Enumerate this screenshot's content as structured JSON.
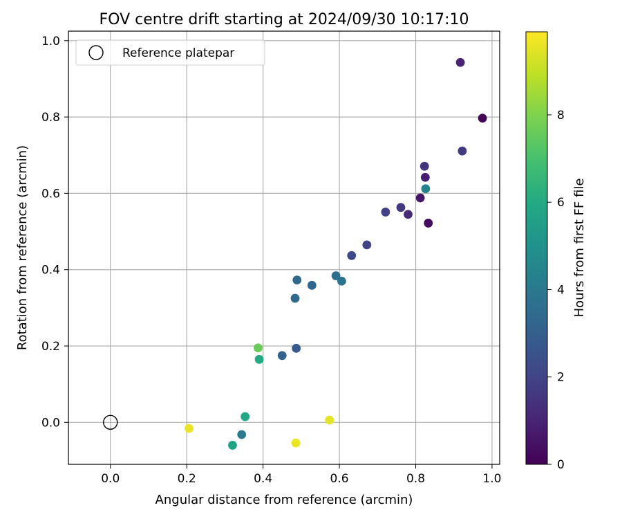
{
  "chart_data": {
    "type": "scatter",
    "title": "FOV centre drift starting at 2024/09/30 10:17:10",
    "xlabel": "Angular distance from reference (arcmin)",
    "ylabel": "Rotation from reference (arcmin)",
    "xlim": [
      -0.11,
      1.02
    ],
    "ylim": [
      -0.11,
      1.025
    ],
    "xticks": [
      0.0,
      0.2,
      0.4,
      0.6,
      0.8,
      1.0
    ],
    "xtick_labels": [
      "0.0",
      "0.2",
      "0.4",
      "0.6",
      "0.8",
      "1.0"
    ],
    "yticks": [
      0.0,
      0.2,
      0.4,
      0.6,
      0.8,
      1.0
    ],
    "ytick_labels": [
      "0.0",
      "0.2",
      "0.4",
      "0.6",
      "0.8",
      "1.0"
    ],
    "grid": true,
    "legend": {
      "position": "top-left",
      "entries": [
        {
          "label": "Reference platepar",
          "marker": "open-circle"
        }
      ]
    },
    "reference_point": {
      "x": 0.0,
      "y": 0.0
    },
    "colorbar": {
      "label": "Hours from first FF file",
      "colormap": "viridis",
      "range": [
        0,
        9.9
      ],
      "ticks": [
        0,
        2,
        4,
        6,
        8
      ],
      "tick_labels": [
        "0",
        "2",
        "4",
        "6",
        "8"
      ]
    },
    "points": [
      {
        "x": 0.975,
        "y": 0.797,
        "c": 0.1
      },
      {
        "x": 0.833,
        "y": 0.522,
        "c": 0.3
      },
      {
        "x": 0.812,
        "y": 0.588,
        "c": 0.6
      },
      {
        "x": 0.825,
        "y": 0.642,
        "c": 0.8
      },
      {
        "x": 0.917,
        "y": 0.943,
        "c": 1.0
      },
      {
        "x": 0.78,
        "y": 0.545,
        "c": 1.2
      },
      {
        "x": 0.823,
        "y": 0.671,
        "c": 1.5
      },
      {
        "x": 0.922,
        "y": 0.711,
        "c": 1.7
      },
      {
        "x": 0.761,
        "y": 0.563,
        "c": 1.6
      },
      {
        "x": 0.721,
        "y": 0.551,
        "c": 1.9
      },
      {
        "x": 0.672,
        "y": 0.465,
        "c": 2.0
      },
      {
        "x": 0.632,
        "y": 0.437,
        "c": 2.2
      },
      {
        "x": 0.487,
        "y": 0.194,
        "c": 2.8
      },
      {
        "x": 0.45,
        "y": 0.175,
        "c": 3.1
      },
      {
        "x": 0.528,
        "y": 0.359,
        "c": 3.2
      },
      {
        "x": 0.489,
        "y": 0.373,
        "c": 3.3
      },
      {
        "x": 0.484,
        "y": 0.325,
        "c": 3.4
      },
      {
        "x": 0.591,
        "y": 0.384,
        "c": 3.6
      },
      {
        "x": 0.606,
        "y": 0.37,
        "c": 3.8
      },
      {
        "x": 0.826,
        "y": 0.612,
        "c": 4.3
      },
      {
        "x": 0.344,
        "y": -0.032,
        "c": 4.1
      },
      {
        "x": 0.32,
        "y": -0.06,
        "c": 5.7
      },
      {
        "x": 0.353,
        "y": 0.015,
        "c": 5.9
      },
      {
        "x": 0.39,
        "y": 0.165,
        "c": 6.0
      },
      {
        "x": 0.387,
        "y": 0.195,
        "c": 7.6
      },
      {
        "x": 0.206,
        "y": -0.016,
        "c": 9.6
      },
      {
        "x": 0.486,
        "y": -0.054,
        "c": 9.6
      },
      {
        "x": 0.574,
        "y": 0.006,
        "c": 9.5
      }
    ]
  }
}
